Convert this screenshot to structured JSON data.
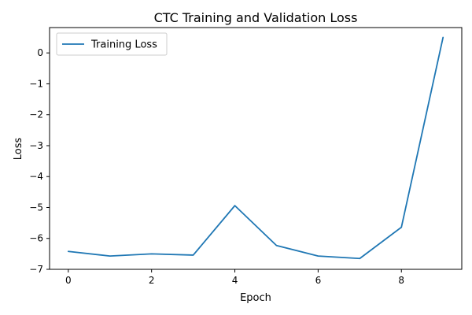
{
  "chart_data": {
    "type": "line",
    "title": "CTC Training and Validation Loss",
    "xlabel": "Epoch",
    "ylabel": "Loss",
    "xlim": [
      -0.45,
      9.45
    ],
    "ylim": [
      -7.0,
      0.82
    ],
    "x_ticks": [
      0,
      2,
      4,
      6,
      8
    ],
    "y_ticks": [
      0,
      -1,
      -2,
      -3,
      -4,
      -5,
      -6,
      -7
    ],
    "y_tick_labels": [
      "0",
      "−1",
      "−2",
      "−3",
      "−4",
      "−5",
      "−6",
      "−7"
    ],
    "grid": false,
    "legend": {
      "position": "top-left"
    },
    "series": [
      {
        "name": "Training Loss",
        "color": "#1f77b4",
        "x": [
          0,
          1,
          2,
          3,
          4,
          5,
          6,
          7,
          8,
          9
        ],
        "y": [
          -6.42,
          -6.57,
          -6.5,
          -6.54,
          -4.94,
          -6.23,
          -6.57,
          -6.65,
          -5.64,
          0.5
        ]
      }
    ]
  }
}
